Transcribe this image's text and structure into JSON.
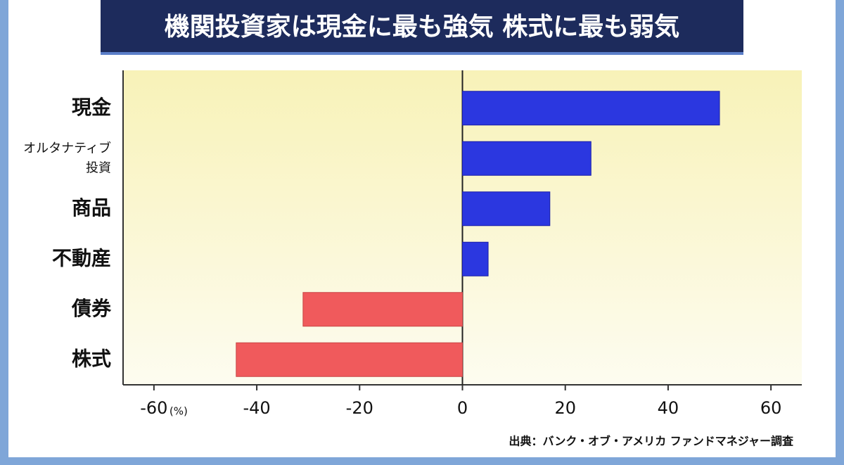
{
  "chart_data": {
    "type": "barh",
    "title": "機関投資家は現金に最も強気 株式に最も弱気",
    "categories": [
      "現金",
      [
        "オルタナティブ",
        "投資"
      ],
      "商品",
      "不動産",
      "債券",
      "株式"
    ],
    "values": [
      50,
      25,
      17,
      5,
      -31,
      -44
    ],
    "positive_color": "#2b37e0",
    "negative_color": "#f05a5c",
    "xlim": [
      -66,
      66
    ],
    "xticks": [
      -60,
      -40,
      -20,
      0,
      20,
      40,
      60
    ],
    "x_unit": "(%)",
    "source": "出典：バンク・オブ・アメリカ ファンドマネジャー調査"
  }
}
